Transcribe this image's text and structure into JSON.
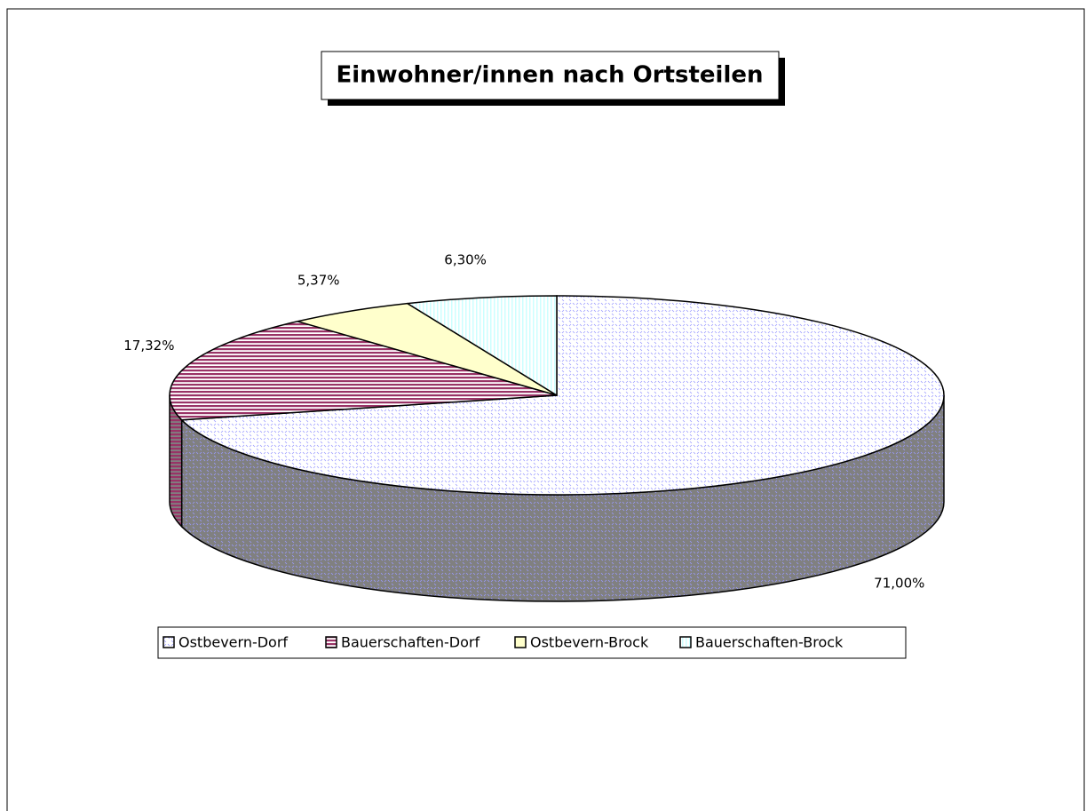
{
  "chart_data": {
    "type": "pie3d",
    "title": "Einwohner/innen nach Ortsteilen",
    "categories": [
      "Ostbevern-Dorf",
      "Bauerschaften-Dorf",
      "Ostbevern-Brock",
      "Bauerschaften-Brock"
    ],
    "values": [
      71.0,
      17.32,
      5.37,
      6.3
    ],
    "value_labels": [
      "71,00%",
      "17,32%",
      "5,37%",
      "6,30%"
    ],
    "colors": [
      "#9999ff",
      "#993366",
      "#ffffcc",
      "#ccffff"
    ],
    "legend": "bottom"
  }
}
